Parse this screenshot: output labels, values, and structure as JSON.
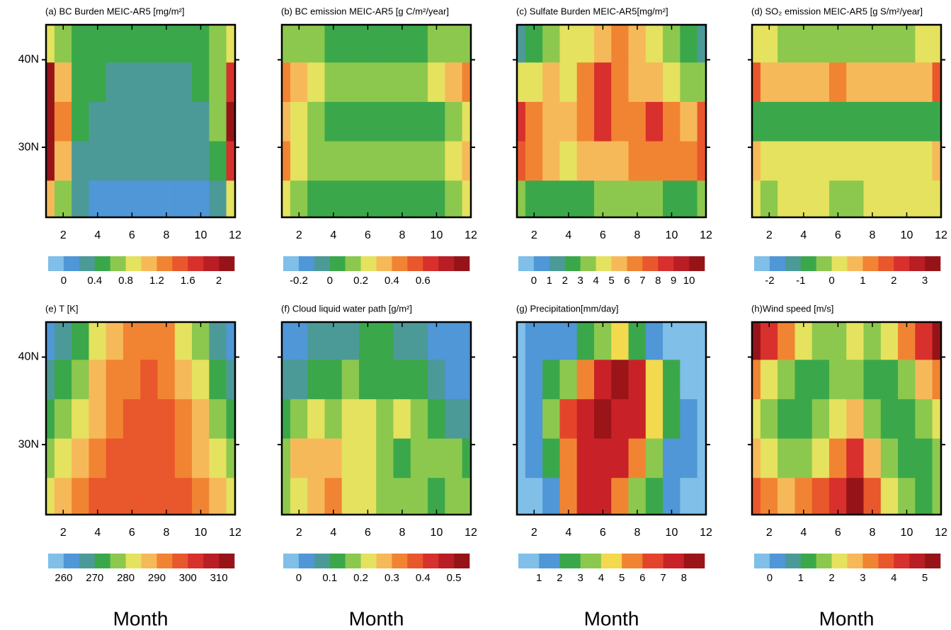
{
  "chart_data": [
    {
      "type": "contour",
      "title": "(a) BC Burden MEIC-AR5 [mg/m²]",
      "xlim": [
        1,
        12
      ],
      "xticks": [
        2,
        4,
        6,
        8,
        10,
        12
      ],
      "ylim": [
        22,
        44
      ],
      "yticks": [
        {
          "value": 30,
          "label": "30N"
        },
        {
          "value": 40,
          "label": "40N"
        }
      ],
      "x": [
        1,
        2,
        3,
        4,
        5,
        6,
        7,
        8,
        9,
        10,
        11,
        12
      ],
      "y": [
        24,
        28.5,
        33,
        37.5,
        42
      ],
      "z": [
        [
          1.0,
          0.6,
          0.2,
          0.1,
          0.1,
          0.1,
          0.1,
          0.1,
          0.1,
          0.1,
          0.2,
          0.8
        ],
        [
          2.0,
          1.0,
          0.3,
          0.2,
          0.2,
          0.2,
          0.2,
          0.2,
          0.2,
          0.2,
          0.4,
          1.6
        ],
        [
          2.2,
          1.2,
          0.5,
          0.3,
          0.2,
          0.2,
          0.2,
          0.2,
          0.2,
          0.3,
          0.6,
          2.0
        ],
        [
          2.0,
          1.0,
          0.5,
          0.4,
          0.3,
          0.3,
          0.3,
          0.3,
          0.3,
          0.4,
          0.7,
          1.6
        ],
        [
          0.9,
          0.7,
          0.5,
          0.4,
          0.4,
          0.4,
          0.4,
          0.4,
          0.4,
          0.4,
          0.6,
          0.9
        ]
      ],
      "levels": [
        0,
        0.2,
        0.4,
        0.6,
        0.8,
        1,
        1.2,
        1.4,
        1.6,
        1.8,
        2
      ],
      "colorbar_ticks": [
        0,
        0.4,
        0.8,
        1.2,
        1.6,
        2
      ],
      "colors": [
        "#7fbfe8",
        "#4f97d6",
        "#4c9a98",
        "#3aa84a",
        "#8cc84e",
        "#e4e25e",
        "#f6b95a",
        "#f18432",
        "#e9572c",
        "#d8302c",
        "#b81e24",
        "#961418"
      ]
    },
    {
      "type": "contour",
      "title": "(b) BC  emission MEIC-AR5 [g C/m²/year]",
      "xlim": [
        1,
        12
      ],
      "xticks": [
        2,
        4,
        6,
        8,
        10,
        12
      ],
      "ylim": [
        22,
        44
      ],
      "yticks": [
        30,
        40
      ],
      "x": [
        1,
        2,
        3,
        4,
        5,
        6,
        7,
        8,
        9,
        10,
        11,
        12
      ],
      "y": [
        24,
        28.5,
        33,
        37.5,
        42
      ],
      "z": [
        [
          0.25,
          0.15,
          0.05,
          0.05,
          0.05,
          0.05,
          0.05,
          0.05,
          0.05,
          0.05,
          0.15,
          0.2
        ],
        [
          0.45,
          0.25,
          0.15,
          0.15,
          0.15,
          0.15,
          0.15,
          0.15,
          0.15,
          0.15,
          0.2,
          0.3
        ],
        [
          0.35,
          0.2,
          0.15,
          0.05,
          0.05,
          0.05,
          0.05,
          0.05,
          0.05,
          0.05,
          0.15,
          0.25
        ],
        [
          0.45,
          0.3,
          0.2,
          0.15,
          0.15,
          0.15,
          0.15,
          0.15,
          0.15,
          0.2,
          0.3,
          0.4
        ],
        [
          0.15,
          0.15,
          0.15,
          0.05,
          0.05,
          0.05,
          0.05,
          0.05,
          0.05,
          0.15,
          0.15,
          0.15
        ]
      ],
      "levels": [
        -0.2,
        -0.1,
        0,
        0.1,
        0.2,
        0.3,
        0.4,
        0.5,
        0.6,
        0.7,
        0.8
      ],
      "colorbar_ticks": [
        -0.2,
        0,
        0.2,
        0.4,
        0.6
      ],
      "colors": [
        "#7fbfe8",
        "#4f97d6",
        "#4c9a98",
        "#3aa84a",
        "#8cc84e",
        "#e4e25e",
        "#f6b95a",
        "#f18432",
        "#e9572c",
        "#d8302c",
        "#b81e24",
        "#961418"
      ]
    },
    {
      "type": "contour",
      "title": "(c) Sulfate Burden MEIC-AR5[mg/m²]",
      "xlim": [
        1,
        12
      ],
      "xticks": [
        2,
        4,
        6,
        8,
        10,
        12
      ],
      "ylim": [
        22,
        44
      ],
      "yticks": [
        30,
        40
      ],
      "x": [
        1,
        2,
        3,
        4,
        5,
        6,
        7,
        8,
        9,
        10,
        11,
        12
      ],
      "y": [
        24,
        28.5,
        33,
        37.5,
        42
      ],
      "z": [
        [
          3.5,
          2.5,
          2.5,
          2.5,
          2.5,
          3.5,
          3.5,
          3.5,
          3.5,
          2.5,
          2.5,
          3.5
        ],
        [
          7.5,
          6.5,
          5.5,
          4.5,
          5.5,
          5.5,
          5.5,
          6.5,
          6.5,
          6.5,
          6.5,
          7.5
        ],
        [
          8.5,
          6.5,
          5.5,
          5.5,
          6.5,
          8.5,
          6.5,
          6.5,
          8.5,
          6.5,
          5.5,
          7.5
        ],
        [
          4.5,
          4.5,
          5.5,
          4.5,
          6.5,
          8.5,
          6.5,
          5.5,
          5.5,
          4.5,
          3.5,
          3.5
        ],
        [
          1.5,
          2.5,
          3.5,
          4.5,
          4.5,
          5.5,
          6.5,
          5.5,
          4.5,
          3.5,
          2.5,
          1.5
        ]
      ],
      "levels": [
        0,
        1,
        2,
        3,
        4,
        5,
        6,
        7,
        8,
        9,
        10
      ],
      "colorbar_ticks": [
        0,
        1,
        2,
        3,
        4,
        5,
        6,
        7,
        8,
        9,
        10
      ],
      "colors": [
        "#7fbfe8",
        "#4f97d6",
        "#4c9a98",
        "#3aa84a",
        "#8cc84e",
        "#e4e25e",
        "#f6b95a",
        "#f18432",
        "#e9572c",
        "#d8302c",
        "#b81e24",
        "#961418"
      ]
    },
    {
      "type": "contour",
      "title": "(d) SO₂ emission MEIC-AR5 [g S/m²/year]",
      "xlim": [
        1,
        12
      ],
      "xticks": [
        2,
        4,
        6,
        8,
        10,
        12
      ],
      "ylim": [
        22,
        44
      ],
      "yticks": [
        30,
        40
      ],
      "x": [
        1,
        2,
        3,
        4,
        5,
        6,
        7,
        8,
        9,
        10,
        11,
        12
      ],
      "y": [
        24,
        28.5,
        33,
        37.5,
        42
      ],
      "z": [
        [
          0.2,
          -0.2,
          0.2,
          0.2,
          0.2,
          -0.2,
          -0.2,
          0.2,
          0.2,
          0.2,
          0.2,
          0.2
        ],
        [
          0.7,
          0.2,
          0.2,
          0.2,
          0.2,
          0.2,
          0.2,
          0.2,
          0.2,
          0.2,
          0.2,
          0.7
        ],
        [
          -0.8,
          -0.8,
          -0.8,
          -0.8,
          -0.8,
          -0.8,
          -0.8,
          -0.8,
          -0.8,
          -0.8,
          -0.8,
          -0.8
        ],
        [
          1.7,
          0.7,
          0.7,
          0.7,
          0.7,
          1.2,
          0.7,
          0.7,
          0.7,
          0.7,
          0.7,
          1.7
        ],
        [
          0.2,
          0.2,
          -0.2,
          -0.2,
          -0.2,
          -0.2,
          -0.2,
          -0.2,
          -0.2,
          -0.2,
          0.2,
          0.2
        ]
      ],
      "levels": [
        -2,
        -1.5,
        -1,
        -0.5,
        0,
        0.5,
        1,
        1.5,
        2,
        2.5,
        3
      ],
      "colorbar_ticks": [
        -2,
        -1,
        0,
        1,
        2,
        3
      ],
      "colors": [
        "#7fbfe8",
        "#4f97d6",
        "#4c9a98",
        "#3aa84a",
        "#8cc84e",
        "#e4e25e",
        "#f6b95a",
        "#f18432",
        "#e9572c",
        "#d8302c",
        "#b81e24",
        "#961418"
      ]
    },
    {
      "type": "contour",
      "title": "(e) T [K]",
      "xlabel": "Month",
      "xlim": [
        1,
        12
      ],
      "xticks": [
        2,
        4,
        6,
        8,
        10,
        12
      ],
      "ylim": [
        22,
        44
      ],
      "yticks": [
        {
          "value": 30,
          "label": "30N"
        },
        {
          "value": 40,
          "label": "40N"
        }
      ],
      "x": [
        1,
        2,
        3,
        4,
        5,
        6,
        7,
        8,
        9,
        10,
        11,
        12
      ],
      "y": [
        24,
        28.5,
        33,
        37.5,
        42
      ],
      "z": [
        [
          282,
          287,
          292,
          297,
          298,
          298,
          298,
          298,
          297,
          292,
          287,
          282
        ],
        [
          277,
          282,
          287,
          292,
          297,
          297,
          298,
          297,
          292,
          287,
          282,
          277
        ],
        [
          272,
          277,
          282,
          287,
          292,
          297,
          297,
          297,
          292,
          287,
          277,
          272
        ],
        [
          267,
          272,
          277,
          287,
          292,
          292,
          297,
          292,
          287,
          282,
          272,
          267
        ],
        [
          262,
          267,
          272,
          282,
          287,
          292,
          292,
          292,
          282,
          277,
          267,
          262
        ]
      ],
      "levels": [
        260,
        265,
        270,
        275,
        280,
        285,
        290,
        295,
        300,
        305,
        310
      ],
      "colorbar_ticks": [
        260,
        270,
        280,
        290,
        300,
        310
      ],
      "colors": [
        "#7fbfe8",
        "#4f97d6",
        "#4c9a98",
        "#3aa84a",
        "#8cc84e",
        "#e4e25e",
        "#f6b95a",
        "#f18432",
        "#e9572c",
        "#d8302c",
        "#b81e24",
        "#961418"
      ]
    },
    {
      "type": "contour",
      "title": "(f) Cloud liquid water path [g/m²]",
      "xlabel": "Month",
      "xlim": [
        1,
        12
      ],
      "xticks": [
        2,
        4,
        6,
        8,
        10,
        12
      ],
      "ylim": [
        22,
        44
      ],
      "yticks": [
        30,
        40
      ],
      "x": [
        1,
        2,
        3,
        4,
        5,
        6,
        7,
        8,
        9,
        10,
        11,
        12
      ],
      "y": [
        24,
        28.5,
        33,
        37.5,
        42
      ],
      "z": [
        [
          0.17,
          0.22,
          0.27,
          0.32,
          0.22,
          0.22,
          0.17,
          0.17,
          0.17,
          0.12,
          0.17,
          0.17
        ],
        [
          0.17,
          0.27,
          0.27,
          0.27,
          0.22,
          0.22,
          0.17,
          0.12,
          0.17,
          0.17,
          0.17,
          0.12
        ],
        [
          0.12,
          0.17,
          0.22,
          0.17,
          0.22,
          0.22,
          0.17,
          0.22,
          0.17,
          0.12,
          0.07,
          0.07
        ],
        [
          0.07,
          0.07,
          0.12,
          0.12,
          0.17,
          0.12,
          0.12,
          0.12,
          0.12,
          0.07,
          0.02,
          0.02
        ],
        [
          0.02,
          0.02,
          0.07,
          0.07,
          0.07,
          0.12,
          0.12,
          0.07,
          0.07,
          0.02,
          0.02,
          0.02
        ]
      ],
      "levels": [
        0,
        0.05,
        0.1,
        0.15,
        0.2,
        0.25,
        0.3,
        0.35,
        0.4,
        0.45,
        0.5
      ],
      "colorbar_ticks": [
        0,
        0.1,
        0.2,
        0.3,
        0.4,
        0.5
      ],
      "colors": [
        "#7fbfe8",
        "#4f97d6",
        "#4c9a98",
        "#3aa84a",
        "#8cc84e",
        "#e4e25e",
        "#f6b95a",
        "#f18432",
        "#e9572c",
        "#d8302c",
        "#b81e24",
        "#961418"
      ]
    },
    {
      "type": "contour",
      "title": "(g) Precipitation[mm/day]",
      "xlabel": "Month",
      "xlim": [
        1,
        12
      ],
      "xticks": [
        2,
        4,
        6,
        8,
        10,
        12
      ],
      "ylim": [
        22,
        44
      ],
      "yticks": [
        30,
        40
      ],
      "x": [
        1,
        2,
        3,
        4,
        5,
        6,
        7,
        8,
        9,
        10,
        11,
        12
      ],
      "y": [
        24,
        28.5,
        33,
        37.5,
        42
      ],
      "z": [
        [
          0.5,
          0.5,
          1.5,
          5.5,
          7.5,
          7.5,
          5.5,
          3.5,
          2.5,
          1.5,
          0.5,
          0.5
        ],
        [
          0.5,
          1.5,
          2.5,
          5.5,
          7.5,
          7.5,
          7.5,
          5.5,
          3.5,
          1.5,
          1.5,
          0.5
        ],
        [
          0.5,
          1.5,
          3.5,
          6.5,
          7.5,
          8.5,
          7.5,
          7.5,
          4.5,
          2.5,
          1.5,
          0.5
        ],
        [
          0.5,
          1.5,
          2.5,
          3.5,
          5.5,
          7.5,
          8.5,
          7.5,
          4.5,
          2.5,
          0.5,
          0.5
        ],
        [
          0.5,
          1.5,
          1.5,
          1.5,
          2.5,
          3.5,
          4.5,
          2.5,
          1.5,
          0.5,
          0.5,
          0.5
        ]
      ],
      "levels": [
        1,
        2,
        3,
        4,
        5,
        6,
        7,
        8
      ],
      "colorbar_ticks": [
        1,
        2,
        3,
        4,
        5,
        6,
        7,
        8
      ],
      "colors": [
        "#7fbfe8",
        "#4f97d6",
        "#3aa84a",
        "#8cc84e",
        "#f3d94e",
        "#f18432",
        "#e4452a",
        "#c82228",
        "#9a1418"
      ]
    },
    {
      "type": "contour",
      "title": "(h)Wind speed [m/s]",
      "xlabel": "Month",
      "xlim": [
        1,
        12
      ],
      "xticks": [
        2,
        4,
        6,
        8,
        10,
        12
      ],
      "ylim": [
        22,
        44
      ],
      "yticks": [
        30,
        40
      ],
      "x": [
        1,
        2,
        3,
        4,
        5,
        6,
        7,
        8,
        9,
        10,
        11,
        12
      ],
      "y": [
        24,
        28.5,
        33,
        37.5,
        42
      ],
      "z": [
        [
          3.7,
          3.2,
          2.7,
          3.2,
          3.7,
          4.2,
          5.2,
          3.7,
          2.2,
          1.7,
          1.2,
          1.7
        ],
        [
          2.7,
          2.2,
          1.7,
          1.7,
          2.2,
          3.2,
          4.2,
          2.7,
          1.7,
          1.2,
          1.2,
          1.7
        ],
        [
          2.2,
          1.7,
          1.2,
          1.2,
          1.7,
          2.2,
          2.7,
          1.7,
          1.2,
          1.2,
          1.7,
          2.2
        ],
        [
          3.2,
          2.2,
          1.7,
          1.2,
          1.2,
          1.7,
          1.7,
          1.2,
          1.2,
          1.7,
          2.7,
          3.2
        ],
        [
          5.2,
          4.2,
          3.2,
          2.2,
          1.7,
          1.7,
          2.2,
          1.7,
          2.2,
          3.2,
          4.2,
          5.2
        ]
      ],
      "levels": [
        0,
        0.5,
        1,
        1.5,
        2,
        2.5,
        3,
        3.5,
        4,
        4.5,
        5
      ],
      "colorbar_ticks": [
        0,
        1,
        2,
        3,
        4,
        5
      ],
      "colors": [
        "#7fbfe8",
        "#4f97d6",
        "#4c9a98",
        "#3aa84a",
        "#8cc84e",
        "#e4e25e",
        "#f6b95a",
        "#f18432",
        "#e9572c",
        "#d8302c",
        "#b81e24",
        "#961418"
      ]
    }
  ]
}
